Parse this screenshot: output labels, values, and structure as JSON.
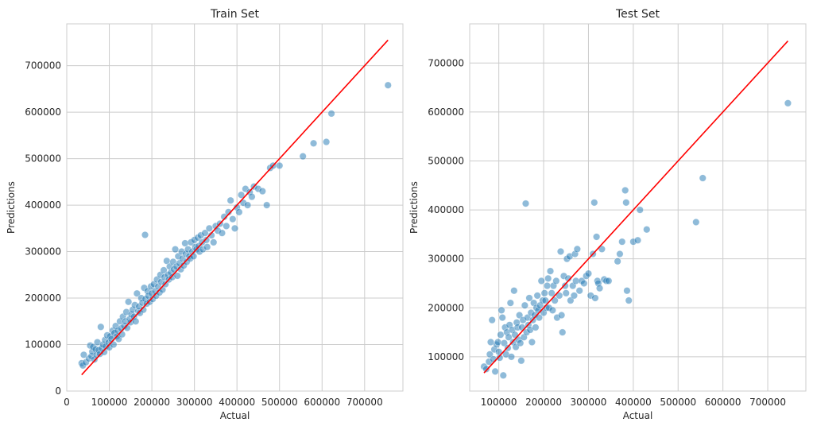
{
  "colors": {
    "points": "#1f77b4",
    "ideal_line": "#ff0000",
    "grid": "#cccccc",
    "background": "#ffffff"
  },
  "chart_data": [
    {
      "type": "scatter",
      "title": "Train Set",
      "xlabel": "Actual",
      "ylabel": "Predictions",
      "xlim": [
        0,
        790000
      ],
      "ylim": [
        0,
        790000
      ],
      "xticks": [
        0,
        100000,
        200000,
        300000,
        400000,
        500000,
        600000,
        700000
      ],
      "xtick_labels": [
        "0",
        "100000",
        "200000",
        "300000",
        "400000",
        "500000",
        "600000",
        "700000"
      ],
      "yticks": [
        0,
        100000,
        200000,
        300000,
        400000,
        500000,
        600000,
        700000
      ],
      "ytick_labels": [
        "0",
        "100000",
        "200000",
        "300000",
        "400000",
        "500000",
        "600000",
        "700000"
      ],
      "grid": true,
      "ideal_line": {
        "from": [
          35000,
          35000
        ],
        "to": [
          755000,
          755000
        ]
      },
      "points": [
        [
          35000,
          60000
        ],
        [
          38000,
          55000
        ],
        [
          40000,
          78000
        ],
        [
          45000,
          62000
        ],
        [
          52000,
          70000
        ],
        [
          55000,
          98000
        ],
        [
          58000,
          75000
        ],
        [
          60000,
          85000
        ],
        [
          62000,
          95000
        ],
        [
          65000,
          68000
        ],
        [
          68000,
          90000
        ],
        [
          70000,
          78000
        ],
        [
          72000,
          105000
        ],
        [
          75000,
          88000
        ],
        [
          78000,
          80000
        ],
        [
          80000,
          138000
        ],
        [
          82000,
          92000
        ],
        [
          85000,
          100000
        ],
        [
          88000,
          84000
        ],
        [
          90000,
          110000
        ],
        [
          92000,
          96000
        ],
        [
          95000,
          120000
        ],
        [
          98000,
          104000
        ],
        [
          100000,
          94000
        ],
        [
          102000,
          118000
        ],
        [
          105000,
          112000
        ],
        [
          108000,
          130000
        ],
        [
          110000,
          100000
        ],
        [
          112000,
          125000
        ],
        [
          115000,
          140000
        ],
        [
          118000,
          118000
        ],
        [
          120000,
          130000
        ],
        [
          122000,
          112000
        ],
        [
          125000,
          150000
        ],
        [
          128000,
          135000
        ],
        [
          130000,
          122000
        ],
        [
          132000,
          160000
        ],
        [
          135000,
          140000
        ],
        [
          138000,
          150000
        ],
        [
          140000,
          170000
        ],
        [
          142000,
          136000
        ],
        [
          145000,
          192000
        ],
        [
          148000,
          155000
        ],
        [
          150000,
          148000
        ],
        [
          152000,
          165000
        ],
        [
          155000,
          175000
        ],
        [
          158000,
          160000
        ],
        [
          160000,
          185000
        ],
        [
          162000,
          150000
        ],
        [
          165000,
          210000
        ],
        [
          168000,
          172000
        ],
        [
          170000,
          182000
        ],
        [
          172000,
          168000
        ],
        [
          175000,
          200000
        ],
        [
          178000,
          190000
        ],
        [
          180000,
          175000
        ],
        [
          182000,
          222000
        ],
        [
          184000,
          336000
        ],
        [
          185000,
          198000
        ],
        [
          188000,
          188000
        ],
        [
          190000,
          215000
        ],
        [
          192000,
          205000
        ],
        [
          195000,
          192000
        ],
        [
          198000,
          225000
        ],
        [
          200000,
          210000
        ],
        [
          202000,
          198000
        ],
        [
          205000,
          230000
        ],
        [
          208000,
          215000
        ],
        [
          210000,
          205000
        ],
        [
          212000,
          240000
        ],
        [
          215000,
          225000
        ],
        [
          218000,
          212000
        ],
        [
          220000,
          250000
        ],
        [
          222000,
          235000
        ],
        [
          225000,
          218000
        ],
        [
          228000,
          260000
        ],
        [
          230000,
          245000
        ],
        [
          232000,
          230000
        ],
        [
          235000,
          280000
        ],
        [
          238000,
          250000
        ],
        [
          240000,
          240000
        ],
        [
          242000,
          268000
        ],
        [
          245000,
          255000
        ],
        [
          248000,
          245000
        ],
        [
          250000,
          278000
        ],
        [
          252000,
          262000
        ],
        [
          255000,
          305000
        ],
        [
          258000,
          268000
        ],
        [
          260000,
          248000
        ],
        [
          262000,
          290000
        ],
        [
          265000,
          275000
        ],
        [
          268000,
          262000
        ],
        [
          270000,
          300000
        ],
        [
          272000,
          285000
        ],
        [
          275000,
          270000
        ],
        [
          278000,
          318000
        ],
        [
          280000,
          295000
        ],
        [
          282000,
          278000
        ],
        [
          285000,
          305000
        ],
        [
          288000,
          290000
        ],
        [
          290000,
          285000
        ],
        [
          292000,
          320000
        ],
        [
          295000,
          300000
        ],
        [
          298000,
          290000
        ],
        [
          300000,
          325000
        ],
        [
          302000,
          310000
        ],
        [
          305000,
          305000
        ],
        [
          308000,
          330000
        ],
        [
          310000,
          312000
        ],
        [
          312000,
          300000
        ],
        [
          315000,
          335000
        ],
        [
          318000,
          320000
        ],
        [
          320000,
          305000
        ],
        [
          325000,
          340000
        ],
        [
          328000,
          325000
        ],
        [
          330000,
          310000
        ],
        [
          335000,
          350000
        ],
        [
          340000,
          335000
        ],
        [
          345000,
          320000
        ],
        [
          350000,
          355000
        ],
        [
          355000,
          345000
        ],
        [
          360000,
          360000
        ],
        [
          365000,
          340000
        ],
        [
          370000,
          375000
        ],
        [
          375000,
          355000
        ],
        [
          380000,
          385000
        ],
        [
          385000,
          410000
        ],
        [
          390000,
          370000
        ],
        [
          395000,
          350000
        ],
        [
          400000,
          395000
        ],
        [
          405000,
          385000
        ],
        [
          410000,
          422000
        ],
        [
          415000,
          405000
        ],
        [
          420000,
          435000
        ],
        [
          425000,
          400000
        ],
        [
          430000,
          428000
        ],
        [
          435000,
          418000
        ],
        [
          440000,
          440000
        ],
        [
          450000,
          435000
        ],
        [
          460000,
          430000
        ],
        [
          470000,
          400000
        ],
        [
          478000,
          480000
        ],
        [
          485000,
          485000
        ],
        [
          500000,
          485000
        ],
        [
          555000,
          505000
        ],
        [
          580000,
          533000
        ],
        [
          610000,
          536000
        ],
        [
          622000,
          597000
        ],
        [
          755000,
          658000
        ]
      ]
    },
    {
      "type": "scatter",
      "title": "Test Set",
      "xlabel": "Actual",
      "ylabel": "Predictions",
      "xlim": [
        35000,
        785000
      ],
      "ylim": [
        30000,
        780000
      ],
      "xticks": [
        100000,
        200000,
        300000,
        400000,
        500000,
        600000,
        700000
      ],
      "xtick_labels": [
        "100000",
        "200000",
        "300000",
        "400000",
        "500000",
        "600000",
        "700000"
      ],
      "yticks": [
        100000,
        200000,
        300000,
        400000,
        500000,
        600000,
        700000
      ],
      "ytick_labels": [
        "100000",
        "200000",
        "300000",
        "400000",
        "500000",
        "600000",
        "700000"
      ],
      "grid": true,
      "ideal_line": {
        "from": [
          67000,
          67000
        ],
        "to": [
          745000,
          745000
        ]
      },
      "points": [
        [
          67000,
          80000
        ],
        [
          72000,
          75000
        ],
        [
          78000,
          90000
        ],
        [
          80000,
          105000
        ],
        [
          82000,
          130000
        ],
        [
          85000,
          175000
        ],
        [
          88000,
          95000
        ],
        [
          90000,
          115000
        ],
        [
          92000,
          70000
        ],
        [
          95000,
          125000
        ],
        [
          98000,
          130000
        ],
        [
          100000,
          110000
        ],
        [
          102000,
          98000
        ],
        [
          104000,
          145000
        ],
        [
          106000,
          195000
        ],
        [
          108000,
          180000
        ],
        [
          110000,
          62000
        ],
        [
          112000,
          128000
        ],
        [
          114000,
          160000
        ],
        [
          116000,
          105000
        ],
        [
          118000,
          150000
        ],
        [
          120000,
          118000
        ],
        [
          122000,
          140000
        ],
        [
          124000,
          165000
        ],
        [
          126000,
          210000
        ],
        [
          128000,
          100000
        ],
        [
          130000,
          155000
        ],
        [
          132000,
          130000
        ],
        [
          134000,
          235000
        ],
        [
          136000,
          145000
        ],
        [
          138000,
          120000
        ],
        [
          140000,
          170000
        ],
        [
          142000,
          160000
        ],
        [
          144000,
          135000
        ],
        [
          146000,
          185000
        ],
        [
          148000,
          128000
        ],
        [
          150000,
          92000
        ],
        [
          152000,
          160000
        ],
        [
          154000,
          175000
        ],
        [
          156000,
          140000
        ],
        [
          158000,
          205000
        ],
        [
          160000,
          413000
        ],
        [
          162000,
          150000
        ],
        [
          164000,
          180000
        ],
        [
          166000,
          165000
        ],
        [
          168000,
          220000
        ],
        [
          170000,
          155000
        ],
        [
          172000,
          190000
        ],
        [
          174000,
          130000
        ],
        [
          176000,
          175000
        ],
        [
          178000,
          210000
        ],
        [
          180000,
          185000
        ],
        [
          182000,
          160000
        ],
        [
          184000,
          200000
        ],
        [
          186000,
          225000
        ],
        [
          188000,
          195000
        ],
        [
          190000,
          180000
        ],
        [
          192000,
          205000
        ],
        [
          195000,
          255000
        ],
        [
          198000,
          215000
        ],
        [
          200000,
          190000
        ],
        [
          202000,
          230000
        ],
        [
          204000,
          215000
        ],
        [
          206000,
          200000
        ],
        [
          208000,
          245000
        ],
        [
          210000,
          260000
        ],
        [
          212000,
          200000
        ],
        [
          215000,
          275000
        ],
        [
          218000,
          230000
        ],
        [
          220000,
          195000
        ],
        [
          222000,
          245000
        ],
        [
          225000,
          215000
        ],
        [
          228000,
          255000
        ],
        [
          230000,
          180000
        ],
        [
          235000,
          225000
        ],
        [
          238000,
          315000
        ],
        [
          240000,
          185000
        ],
        [
          242000,
          150000
        ],
        [
          245000,
          265000
        ],
        [
          248000,
          245000
        ],
        [
          250000,
          230000
        ],
        [
          252000,
          300000
        ],
        [
          255000,
          260000
        ],
        [
          258000,
          305000
        ],
        [
          260000,
          215000
        ],
        [
          265000,
          245000
        ],
        [
          268000,
          225000
        ],
        [
          270000,
          310000
        ],
        [
          272000,
          255000
        ],
        [
          275000,
          320000
        ],
        [
          280000,
          235000
        ],
        [
          285000,
          255000
        ],
        [
          290000,
          250000
        ],
        [
          295000,
          265000
        ],
        [
          300000,
          270000
        ],
        [
          305000,
          225000
        ],
        [
          310000,
          310000
        ],
        [
          313000,
          415000
        ],
        [
          315000,
          220000
        ],
        [
          318000,
          345000
        ],
        [
          320000,
          255000
        ],
        [
          322000,
          250000
        ],
        [
          325000,
          240000
        ],
        [
          330000,
          320000
        ],
        [
          335000,
          258000
        ],
        [
          340000,
          255000
        ],
        [
          345000,
          255000
        ],
        [
          365000,
          295000
        ],
        [
          370000,
          310000
        ],
        [
          375000,
          335000
        ],
        [
          382000,
          440000
        ],
        [
          384000,
          415000
        ],
        [
          386000,
          235000
        ],
        [
          390000,
          215000
        ],
        [
          400000,
          335000
        ],
        [
          410000,
          338000
        ],
        [
          415000,
          400000
        ],
        [
          430000,
          360000
        ],
        [
          540000,
          375000
        ],
        [
          555000,
          465000
        ],
        [
          745000,
          618000
        ]
      ]
    }
  ]
}
